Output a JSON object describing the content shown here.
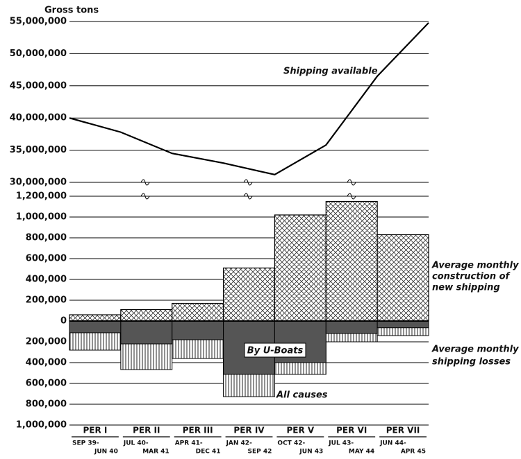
{
  "chart_data": {
    "type": "line",
    "y_label": "Gross tons",
    "categories": [
      "PER I",
      "PER II",
      "PER III",
      "PER IV",
      "PER V",
      "PER VI",
      "PER VII"
    ],
    "period_dates": [
      [
        "SEP 39-",
        "JUN 40"
      ],
      [
        "JUL 40-",
        "MAR 41"
      ],
      [
        "APR 41-",
        "DEC 41"
      ],
      [
        "JAN 42-",
        "SEP 42"
      ],
      [
        "OCT 42-",
        "JUN 43"
      ],
      [
        "JUL 43-",
        "MAY 44"
      ],
      [
        "JUN 44-",
        "APR 45"
      ]
    ],
    "top": {
      "ylim": [
        30000000,
        55000000
      ],
      "yticks": [
        {
          "value": 30000000,
          "label": "30,000,000"
        },
        {
          "value": 35000000,
          "label": "35,000,000"
        },
        {
          "value": 40000000,
          "label": "40,000,000"
        },
        {
          "value": 45000000,
          "label": "45,000,000"
        },
        {
          "value": 50000000,
          "label": "50,000,000"
        },
        {
          "value": 55000000,
          "label": "55,000,000"
        }
      ],
      "series": [
        {
          "name": "Shipping available",
          "color": "#000000",
          "values": [
            40000000,
            37800000,
            34500000,
            33000000,
            31200000,
            35800000,
            46500000,
            54800000
          ]
        }
      ]
    },
    "construction": {
      "type": "bar",
      "label": [
        "Average monthly",
        "construction of",
        "new shipping"
      ],
      "ylim": [
        0,
        1200000
      ],
      "yticks": [
        0,
        {
          "value": 200000,
          "label": "200,000"
        },
        {
          "value": 400000,
          "label": "400,000"
        },
        {
          "value": 600000,
          "label": "600,000"
        },
        {
          "value": 800000,
          "label": "800,000"
        },
        {
          "value": 1000000,
          "label": "1,000,000"
        },
        {
          "value": 1200000,
          "label": "1,200,000"
        }
      ],
      "values": [
        60000,
        110000,
        170000,
        510000,
        1020000,
        1150000,
        830000
      ]
    },
    "losses": {
      "type": "bar",
      "label": [
        "Average monthly",
        "shipping losses"
      ],
      "ylim": [
        0,
        1000000
      ],
      "yticks": [
        {
          "value": 200000,
          "label": "200,000"
        },
        {
          "value": 400000,
          "label": "400,000"
        },
        {
          "value": 600000,
          "label": "600,000"
        },
        {
          "value": 800000,
          "label": "800,000"
        },
        {
          "value": 1000000,
          "label": "1,000,000"
        }
      ],
      "series": [
        {
          "name": "All causes",
          "color": "#ffffff",
          "values": [
            280000,
            467000,
            360000,
            727000,
            513000,
            200000,
            140000
          ]
        },
        {
          "name": "By U-Boats",
          "color": "#555555",
          "values": [
            113000,
            220000,
            180000,
            513000,
            400000,
            120000,
            65000
          ]
        }
      ]
    }
  }
}
